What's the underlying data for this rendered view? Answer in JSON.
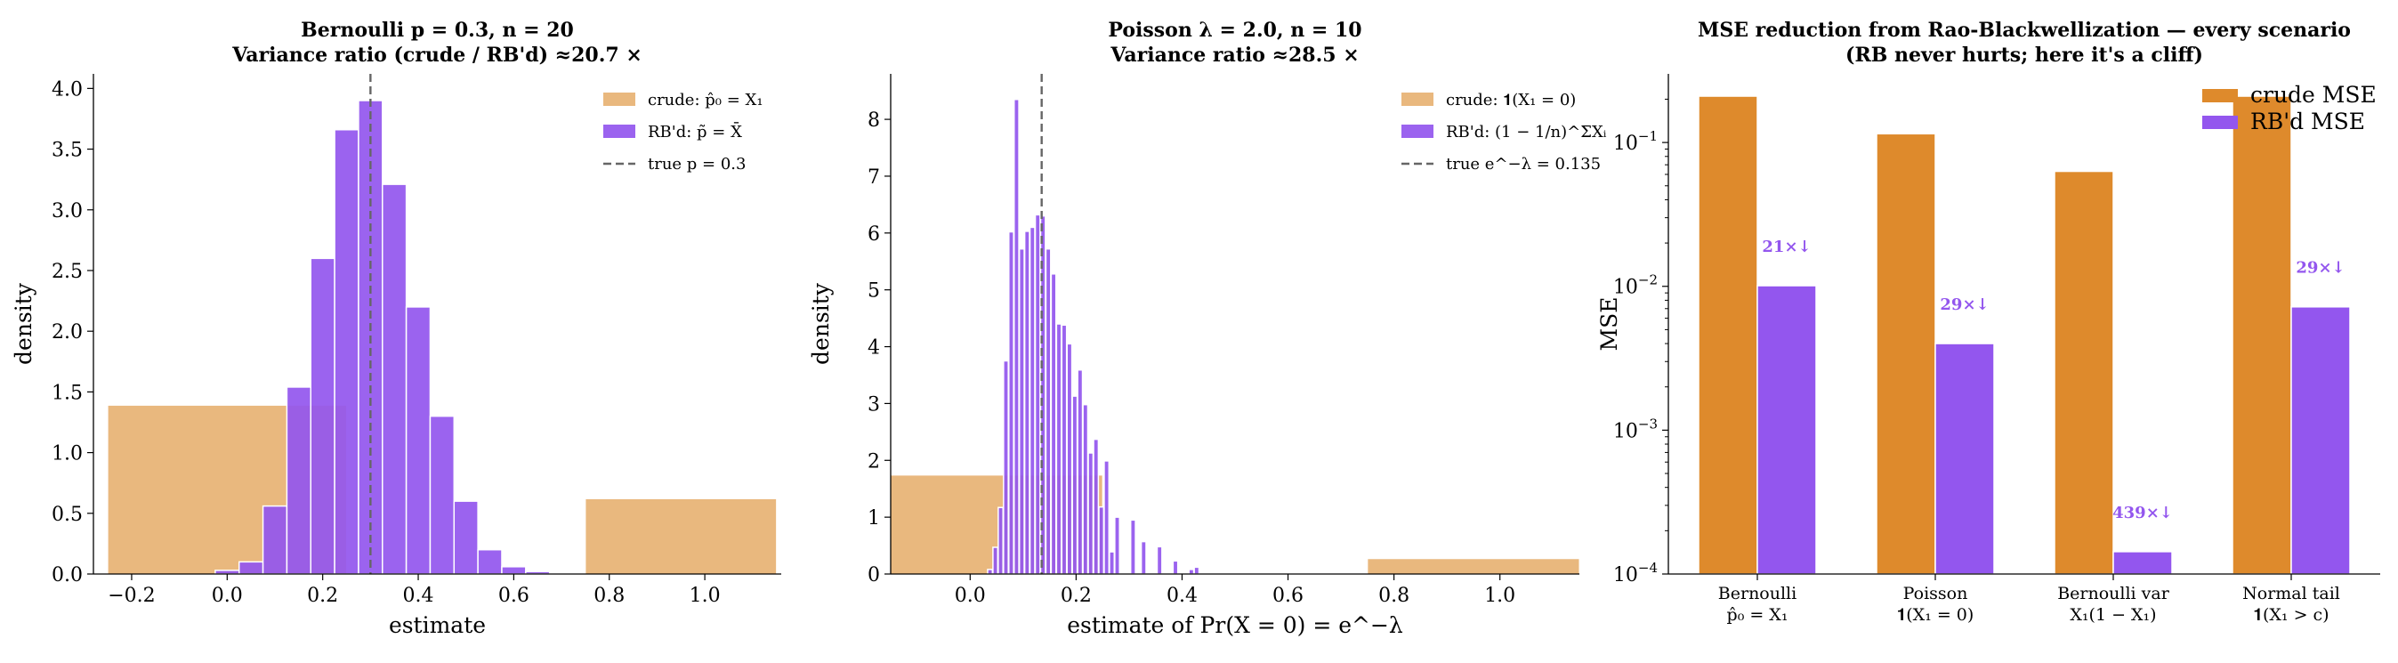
{
  "colors": {
    "crude": "#E8B477",
    "crude_dark": "#DE8A2C",
    "rb": "#9356EE",
    "truth": "#666666"
  },
  "chart_data": [
    {
      "type": "histogram",
      "title_line1": "Bernoulli p = 0.3, n = 20",
      "title_line2": "Variance ratio (crude / RB'd) ≈20.7 ×",
      "xlabel": "estimate",
      "ylabel": "density",
      "xlim": [
        -0.28,
        1.16
      ],
      "ylim": [
        0,
        4.12
      ],
      "xticks": [
        -0.2,
        0.0,
        0.2,
        0.4,
        0.6,
        0.8,
        1.0
      ],
      "xtick_labels": [
        "−0.2",
        "0.0",
        "0.2",
        "0.4",
        "0.6",
        "0.8",
        "1.0"
      ],
      "yticks": [
        0.0,
        0.5,
        1.0,
        1.5,
        2.0,
        2.5,
        3.0,
        3.5,
        4.0
      ],
      "ytick_labels": [
        "0.0",
        "0.5",
        "1.0",
        "1.5",
        "2.0",
        "2.5",
        "3.0",
        "3.5",
        "4.0"
      ],
      "true_value": 0.3,
      "legend": [
        "crude: p̂₀ = X₁",
        "RB'd: p̃ = X̄",
        "true p = 0.3"
      ],
      "crude_bins": [
        [
          -0.25,
          0.25,
          1.39
        ],
        [
          0.75,
          1.15,
          0.62
        ]
      ],
      "rb_bins": [
        [
          -0.025,
          0.025,
          0.03
        ],
        [
          0.025,
          0.075,
          0.1
        ],
        [
          0.075,
          0.125,
          0.56
        ],
        [
          0.125,
          0.175,
          1.54
        ],
        [
          0.175,
          0.225,
          2.6
        ],
        [
          0.225,
          0.275,
          3.66
        ],
        [
          0.275,
          0.325,
          3.9
        ],
        [
          0.325,
          0.375,
          3.21
        ],
        [
          0.375,
          0.425,
          2.2
        ],
        [
          0.425,
          0.475,
          1.3
        ],
        [
          0.475,
          0.525,
          0.6
        ],
        [
          0.525,
          0.575,
          0.2
        ],
        [
          0.575,
          0.625,
          0.06
        ],
        [
          0.625,
          0.675,
          0.02
        ]
      ]
    },
    {
      "type": "histogram",
      "title_line1": "Poisson λ = 2.0, n = 10",
      "title_line2": "Variance ratio ≈28.5 ×",
      "xlabel": "estimate of Pr(X = 0) = e^−λ",
      "ylabel": "density",
      "xlim": [
        -0.15,
        1.15
      ],
      "ylim": [
        0,
        8.8
      ],
      "xticks": [
        0.0,
        0.2,
        0.4,
        0.6,
        0.8,
        1.0
      ],
      "xtick_labels": [
        "0.0",
        "0.2",
        "0.4",
        "0.6",
        "0.8",
        "1.0"
      ],
      "yticks": [
        0,
        1,
        2,
        3,
        4,
        5,
        6,
        7,
        8
      ],
      "ytick_labels": [
        "0",
        "1",
        "2",
        "3",
        "4",
        "5",
        "6",
        "7",
        "8"
      ],
      "true_value": 0.135,
      "legend": [
        "crude: 𝟏(X₁ = 0)",
        "RB'd: (1 − 1/n)^ΣXᵢ",
        "true e^−λ = 0.135"
      ],
      "crude_bins": [
        [
          -0.15,
          0.25,
          1.74
        ],
        [
          0.75,
          1.15,
          0.27
        ]
      ],
      "rb_bins": [
        [
          0.033,
          0.042,
          0.08
        ],
        [
          0.043,
          0.052,
          0.47
        ],
        [
          0.053,
          0.062,
          1.17
        ],
        [
          0.063,
          0.072,
          3.75
        ],
        [
          0.073,
          0.082,
          6.02
        ],
        [
          0.083,
          0.092,
          8.35
        ],
        [
          0.093,
          0.102,
          5.72
        ],
        [
          0.103,
          0.112,
          6.03
        ],
        [
          0.113,
          0.122,
          6.1
        ],
        [
          0.123,
          0.132,
          6.32
        ],
        [
          0.133,
          0.142,
          6.3
        ],
        [
          0.143,
          0.152,
          5.72
        ],
        [
          0.153,
          0.162,
          5.28
        ],
        [
          0.163,
          0.172,
          4.4
        ],
        [
          0.173,
          0.182,
          4.38
        ],
        [
          0.183,
          0.192,
          4.05
        ],
        [
          0.193,
          0.202,
          3.13
        ],
        [
          0.203,
          0.212,
          3.59
        ],
        [
          0.213,
          0.222,
          2.98
        ],
        [
          0.223,
          0.232,
          2.13
        ],
        [
          0.233,
          0.242,
          2.37
        ],
        [
          0.243,
          0.252,
          1.18
        ],
        [
          0.253,
          0.262,
          1.99
        ],
        [
          0.263,
          0.272,
          0.39
        ],
        [
          0.273,
          0.282,
          1.0
        ],
        [
          0.303,
          0.312,
          0.95
        ],
        [
          0.323,
          0.332,
          0.57
        ],
        [
          0.353,
          0.362,
          0.48
        ],
        [
          0.383,
          0.392,
          0.23
        ],
        [
          0.413,
          0.422,
          0.08
        ],
        [
          0.423,
          0.432,
          0.12
        ]
      ]
    },
    {
      "type": "bar",
      "title_line1": "MSE reduction from Rao-Blackwellization — every scenario",
      "title_line2": "(RB never hurts; here it's a cliff)",
      "ylabel": "MSE",
      "yscale": "log",
      "ylim": [
        0.0001,
        0.3
      ],
      "ytick_exponents": [
        -4,
        -3,
        -2,
        -1
      ],
      "categories": [
        {
          "line1": "Bernoulli",
          "line2": "p̂₀ = X₁"
        },
        {
          "line1": "Poisson",
          "line2": "𝟏(X₁ = 0)"
        },
        {
          "line1": "Bernoulli var",
          "line2": "X₁(1 − X₁)"
        },
        {
          "line1": "Normal tail",
          "line2": "𝟏(X₁ > c)"
        }
      ],
      "series": [
        {
          "name": "crude MSE",
          "values": [
            0.21,
            0.115,
            0.063,
            0.21
          ]
        },
        {
          "name": "RB'd MSE",
          "values": [
            0.0101,
            0.004,
            0.000143,
            0.0072
          ]
        }
      ],
      "annotations": [
        "21×↓",
        "29×↓",
        "439×↓",
        "29×↓"
      ]
    }
  ]
}
